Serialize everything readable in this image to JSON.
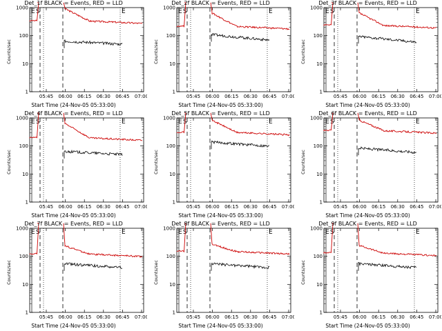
{
  "chart_data": [
    {
      "type": "line",
      "title": "Det_1f BLACK = Events, RED = LLD",
      "xlabel": "Start Time (24-Nov-05 05:33:00)",
      "ylabel": "Counts/sec",
      "xticks": [
        "05:45",
        "06:00",
        "06:15",
        "06:30",
        "06:45",
        "07:00"
      ],
      "yticks": [
        "1",
        "10",
        "100",
        "1000"
      ],
      "ylim": [
        1,
        1000
      ],
      "xlim": [
        38,
        93
      ],
      "annotations": [
        "E",
        "S",
        "E"
      ],
      "series": [
        {
          "name": "RED = LLD",
          "color": "#cc0000",
          "level": 360,
          "peak": 1500,
          "dip": 1000
        },
        {
          "name": "BLACK = Events",
          "color": "#000000",
          "level": 55,
          "start": 65,
          "end": 50
        }
      ]
    },
    {
      "type": "line",
      "title": "Det_2f BLACK = Events, RED = LLD",
      "xlabel": "Start Time (24-Nov-05 05:33:00)",
      "ylabel": "Counts/sec",
      "xticks": [
        "05:45",
        "06:00",
        "06:15",
        "06:30",
        "06:45",
        "07:00"
      ],
      "yticks": [
        "1",
        "10",
        "100",
        "1000"
      ],
      "ylim": [
        1,
        1000
      ],
      "xlim": [
        38,
        93
      ],
      "annotations": [
        "E",
        "S",
        "E"
      ],
      "series": [
        {
          "name": "RED = LLD",
          "color": "#cc0000",
          "level": 230,
          "peak": 1500,
          "dip": 700
        },
        {
          "name": "BLACK = Events",
          "color": "#000000",
          "level": 90,
          "start": 110,
          "end": 70
        }
      ]
    },
    {
      "type": "line",
      "title": "Det_3f BLACK = Events, RED = LLD",
      "xlabel": "Start Time (24-Nov-05 05:33:00)",
      "ylabel": "Counts/sec",
      "xticks": [
        "05:45",
        "06:00",
        "06:15",
        "06:30",
        "06:45",
        "07:00"
      ],
      "yticks": [
        "1",
        "10",
        "100",
        "1000"
      ],
      "ylim": [
        1,
        1000
      ],
      "xlim": [
        38,
        93
      ],
      "annotations": [
        "E",
        "S",
        "E"
      ],
      "series": [
        {
          "name": "RED = LLD",
          "color": "#cc0000",
          "level": 250,
          "peak": 1500,
          "dip": 700
        },
        {
          "name": "BLACK = Events",
          "color": "#000000",
          "level": 75,
          "start": 95,
          "end": 60
        }
      ]
    },
    {
      "type": "line",
      "title": "Det_4f BLACK = Events, RED = LLD",
      "xlabel": "Start Time (24-Nov-05 05:33:00)",
      "ylabel": "Counts/sec",
      "xticks": [
        "05:45",
        "06:00",
        "06:15",
        "06:30",
        "06:45",
        "07:00"
      ],
      "yticks": [
        "1",
        "10",
        "100",
        "1000"
      ],
      "ylim": [
        1,
        1000
      ],
      "xlim": [
        38,
        93
      ],
      "annotations": [
        "E",
        "S",
        "E"
      ],
      "series": [
        {
          "name": "RED = LLD",
          "color": "#cc0000",
          "level": 210,
          "peak": 1500,
          "dip": 700
        },
        {
          "name": "BLACK = Events",
          "color": "#000000",
          "level": 55,
          "start": 65,
          "end": 50
        }
      ]
    },
    {
      "type": "line",
      "title": "Det_5f BLACK = Events, RED = LLD",
      "xlabel": "Start Time (24-Nov-05 05:33:00)",
      "ylabel": "Counts/sec",
      "xticks": [
        "05:45",
        "06:00",
        "06:15",
        "06:30",
        "06:45",
        "07:00"
      ],
      "yticks": [
        "1",
        "10",
        "100",
        "1000"
      ],
      "ylim": [
        1,
        1000
      ],
      "xlim": [
        38,
        93
      ],
      "annotations": [
        "E",
        "S",
        "E"
      ],
      "series": [
        {
          "name": "RED = LLD",
          "color": "#cc0000",
          "level": 330,
          "peak": 1500,
          "dip": 900
        },
        {
          "name": "BLACK = Events",
          "color": "#000000",
          "level": 120,
          "start": 140,
          "end": 100
        }
      ]
    },
    {
      "type": "line",
      "title": "Det_6f BLACK = Events, RED = LLD",
      "xlabel": "Start Time (24-Nov-05 05:33:00)",
      "ylabel": "Counts/sec",
      "xticks": [
        "05:45",
        "06:00",
        "06:15",
        "06:30",
        "06:45",
        "07:00"
      ],
      "yticks": [
        "1",
        "10",
        "100",
        "1000"
      ],
      "ylim": [
        1,
        1000
      ],
      "xlim": [
        38,
        93
      ],
      "annotations": [
        "E",
        "S",
        "E"
      ],
      "series": [
        {
          "name": "RED = LLD",
          "color": "#cc0000",
          "level": 380,
          "peak": 1500,
          "dip": 900
        },
        {
          "name": "BLACK = Events",
          "color": "#000000",
          "level": 70,
          "start": 85,
          "end": 60
        }
      ]
    },
    {
      "type": "line",
      "title": "Det_7f BLACK = Events, RED = LLD",
      "xlabel": "Start Time (24-Nov-05 05:33:00)",
      "ylabel": "Counts/sec",
      "xticks": [
        "05:45",
        "06:00",
        "06:15",
        "06:30",
        "06:45",
        "07:00"
      ],
      "yticks": [
        "1",
        "10",
        "100",
        "1000"
      ],
      "ylim": [
        1,
        1000
      ],
      "xlim": [
        38,
        93
      ],
      "annotations": [
        "E",
        "S",
        "E"
      ],
      "series": [
        {
          "name": "RED = LLD",
          "color": "#cc0000",
          "level": 130,
          "peak": 1500,
          "dip": 250
        },
        {
          "name": "BLACK = Events",
          "color": "#000000",
          "level": 45,
          "start": 55,
          "end": 40
        }
      ]
    },
    {
      "type": "line",
      "title": "Det_8f BLACK = Events, RED = LLD",
      "xlabel": "Start Time (24-Nov-05 05:33:00)",
      "ylabel": "Counts/sec",
      "xticks": [
        "05:45",
        "06:00",
        "06:15",
        "06:30",
        "06:45",
        "07:00"
      ],
      "yticks": [
        "1",
        "10",
        "100",
        "1000"
      ],
      "ylim": [
        1,
        1000
      ],
      "xlim": [
        38,
        93
      ],
      "annotations": [
        "E",
        "S",
        "E"
      ],
      "series": [
        {
          "name": "RED = LLD",
          "color": "#cc0000",
          "level": 160,
          "peak": 1500,
          "dip": 280
        },
        {
          "name": "BLACK = Events",
          "color": "#000000",
          "level": 45,
          "start": 55,
          "end": 40
        }
      ]
    },
    {
      "type": "line",
      "title": "Det_9f BLACK = Events, RED = LLD",
      "xlabel": "Start Time (24-Nov-05 05:33:00)",
      "ylabel": "Counts/sec",
      "xticks": [
        "05:45",
        "06:00",
        "06:15",
        "06:30",
        "06:45",
        "07:00"
      ],
      "yticks": [
        "1",
        "10",
        "100",
        "1000"
      ],
      "ylim": [
        1,
        1000
      ],
      "xlim": [
        38,
        93
      ],
      "annotations": [
        "E",
        "S",
        "E"
      ],
      "series": [
        {
          "name": "RED = LLD",
          "color": "#cc0000",
          "level": 140,
          "peak": 1500,
          "dip": 260
        },
        {
          "name": "BLACK = Events",
          "color": "#000000",
          "level": 45,
          "start": 55,
          "end": 40
        }
      ]
    }
  ]
}
